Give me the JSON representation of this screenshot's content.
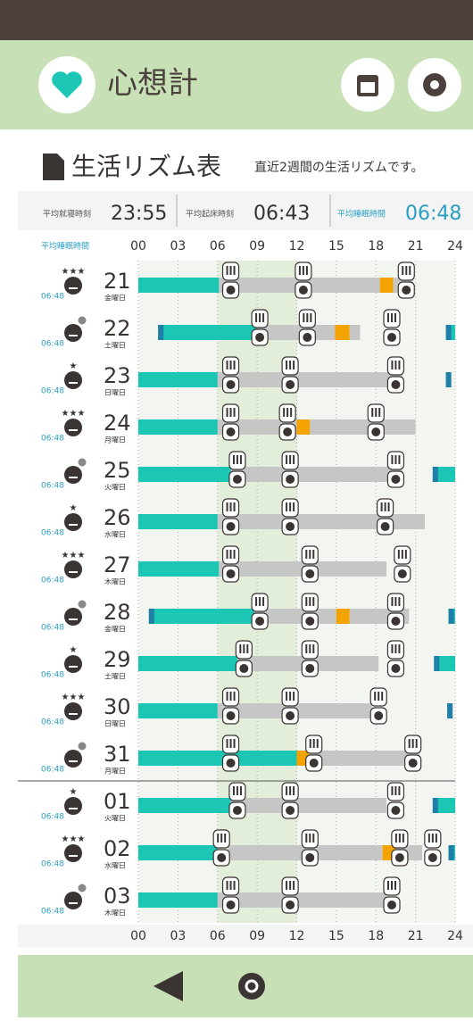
{
  "header": {
    "logo": "心想計"
  },
  "title": "生活リズム表",
  "subtitle": "直近2週間の生活リズムです。",
  "stats": [
    {
      "label": "平均就寝時刻",
      "value": "23:55"
    },
    {
      "label": "平均起床時刻",
      "value": "06:43"
    },
    {
      "label": "平均睡眠時間",
      "value": "06:48"
    }
  ],
  "avg_header": "平均睡眠時間",
  "chart_data": {
    "type": "timeline",
    "xlim": [
      0,
      24
    ],
    "xticks": [
      {
        "value": 0,
        "label": "00"
      },
      {
        "value": 3,
        "label": "03"
      },
      {
        "value": 6,
        "label": "06"
      },
      {
        "value": 9,
        "label": "09"
      },
      {
        "value": 12,
        "label": "12"
      },
      {
        "value": 15,
        "label": "15"
      },
      {
        "value": 18,
        "label": "18"
      },
      {
        "value": 21,
        "label": "21"
      },
      {
        "value": 24,
        "label": "24"
      }
    ],
    "colors": {
      "sleep": "#1cc6b4",
      "awake": "#c6c6c6",
      "nap": "#f5a300"
    },
    "rows": [
      {
        "day": "21",
        "weekday": "金曜日",
        "avg": "06:48",
        "rating": "★★★",
        "sleep": [
          [
            0,
            6.1
          ]
        ],
        "awake": [
          [
            6.1,
            18.3
          ],
          [
            19.3,
            20.8
          ]
        ],
        "nap": [
          [
            18.3,
            19.3
          ]
        ],
        "meals": [
          7,
          12.5,
          20.3
        ]
      },
      {
        "day": "22",
        "weekday": "土曜日",
        "avg": "06:48",
        "rating": null,
        "sleep": [
          [
            1.5,
            9
          ],
          [
            23.3,
            24
          ]
        ],
        "awake": [
          [
            9,
            14.9
          ],
          [
            16,
            16.8
          ]
        ],
        "nap": [
          [
            14.9,
            16
          ]
        ],
        "meals": [
          9.2,
          12.8,
          19.2
        ]
      },
      {
        "day": "23",
        "weekday": "日曜日",
        "avg": "06:48",
        "rating": "★",
        "sleep": [
          [
            0,
            6
          ],
          [
            23.3,
            23.7
          ]
        ],
        "awake": [
          [
            6,
            20
          ]
        ],
        "nap": [],
        "meals": [
          7,
          11.5,
          19.5
        ]
      },
      {
        "day": "24",
        "weekday": "月曜日",
        "avg": "06:48",
        "rating": "★★★",
        "sleep": [
          [
            0,
            6
          ]
        ],
        "awake": [
          [
            6,
            12
          ],
          [
            13,
            21
          ]
        ],
        "nap": [
          [
            12,
            13
          ]
        ],
        "meals": [
          7,
          11.3,
          18
        ]
      },
      {
        "day": "25",
        "weekday": "火曜日",
        "avg": "06:48",
        "rating": null,
        "sleep": [
          [
            0,
            7
          ],
          [
            22.3,
            24
          ]
        ],
        "awake": [
          [
            7,
            20
          ]
        ],
        "nap": [],
        "meals": [
          7.5,
          11.5,
          19.5
        ]
      },
      {
        "day": "26",
        "weekday": "水曜日",
        "avg": "06:48",
        "rating": "★",
        "sleep": [
          [
            0,
            6
          ]
        ],
        "awake": [
          [
            6,
            21.7
          ]
        ],
        "nap": [],
        "meals": [
          7,
          11.5,
          18.7
        ]
      },
      {
        "day": "27",
        "weekday": "木曜日",
        "avg": "06:48",
        "rating": "★★★",
        "sleep": [
          [
            0,
            6.1
          ]
        ],
        "awake": [
          [
            6.1,
            18.8
          ]
        ],
        "nap": [],
        "meals": [
          7,
          13,
          20
        ]
      },
      {
        "day": "28",
        "weekday": "金曜日",
        "avg": "06:48",
        "rating": null,
        "sleep": [
          [
            0.8,
            8.8
          ],
          [
            23.5,
            24
          ]
        ],
        "awake": [
          [
            8.8,
            15
          ],
          [
            16,
            20.5
          ]
        ],
        "nap": [
          [
            15,
            16
          ]
        ],
        "meals": [
          9.2,
          13,
          19.5
        ]
      },
      {
        "day": "29",
        "weekday": "土曜日",
        "avg": "06:48",
        "rating": "★",
        "sleep": [
          [
            0,
            7.5
          ],
          [
            22.4,
            24
          ]
        ],
        "awake": [
          [
            7.5,
            18.2
          ]
        ],
        "nap": [],
        "meals": [
          8,
          13,
          19.5
        ]
      },
      {
        "day": "30",
        "weekday": "日曜日",
        "avg": "06:48",
        "rating": "★★★",
        "sleep": [
          [
            0,
            6
          ],
          [
            23.4,
            23.8
          ]
        ],
        "awake": [
          [
            6,
            17.7
          ]
        ],
        "nap": [],
        "meals": [
          7,
          11.5,
          18.2
        ]
      },
      {
        "day": "31",
        "weekday": "月曜日",
        "avg": "06:48",
        "rating": null,
        "sleep": [
          [
            0,
            12
          ]
        ],
        "awake": [
          [
            12.9,
            21.3
          ]
        ],
        "nap": [
          [
            12,
            12.9
          ]
        ],
        "meals": [
          7,
          13.3,
          20.8
        ]
      },
      {
        "day": "01",
        "weekday": "火曜日",
        "avg": "06:48",
        "rating": "★",
        "sleep": [
          [
            0,
            7
          ],
          [
            22.3,
            24
          ]
        ],
        "awake": [
          [
            7,
            18.8
          ]
        ],
        "nap": [],
        "meals": [
          7.5,
          11.5,
          19.5
        ]
      },
      {
        "day": "02",
        "weekday": "水曜日",
        "avg": "06:48",
        "rating": "★★★",
        "sleep": [
          [
            0,
            6
          ],
          [
            23.5,
            24
          ]
        ],
        "awake": [
          [
            6.8,
            18.5
          ],
          [
            19.5,
            21.5
          ]
        ],
        "nap": [
          [
            18.5,
            19.5
          ]
        ],
        "meals": [
          6.3,
          13,
          19.8,
          22.3
        ]
      },
      {
        "day": "03",
        "weekday": "木曜日",
        "avg": "06:48",
        "rating": null,
        "sleep": [
          [
            0,
            6
          ]
        ],
        "awake": [
          [
            6,
            18.8
          ]
        ],
        "nap": [],
        "meals": [
          7,
          11.5,
          19.2
        ]
      }
    ]
  }
}
